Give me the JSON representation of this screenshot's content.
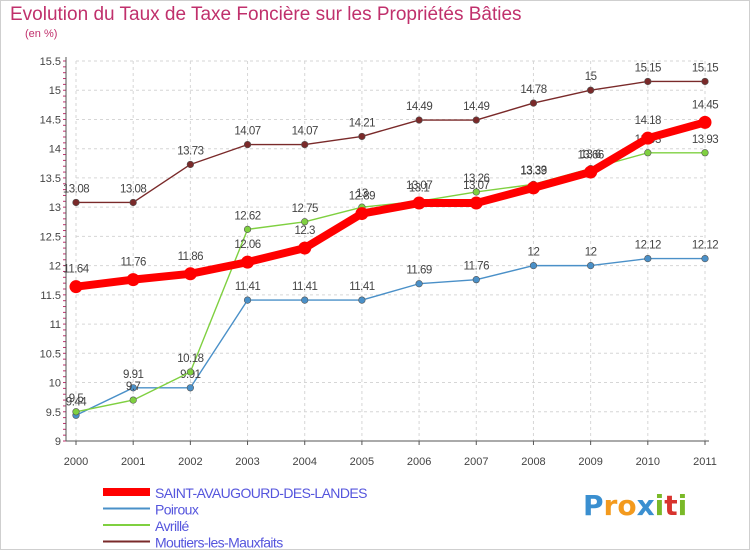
{
  "chart_data": {
    "type": "line",
    "title": "Evolution du Taux de Taxe Foncière sur les Propriétés Bâties",
    "subtitle": "(en %)",
    "x": [
      "2000",
      "2001",
      "2002",
      "2003",
      "2004",
      "2005",
      "2006",
      "2007",
      "2008",
      "2009",
      "2010",
      "2011"
    ],
    "ylim": [
      9,
      15.5
    ],
    "yticks": [
      "9",
      "9.5",
      "10",
      "10.5",
      "11",
      "11.5",
      "12",
      "12.5",
      "13",
      "13.5",
      "14",
      "14.5",
      "15",
      "15.5"
    ],
    "grid": true,
    "series": [
      {
        "name": "SAINT-AVAUGOURD-DES-LANDES",
        "color": "#ff0000",
        "values": [
          11.64,
          11.76,
          11.86,
          12.06,
          12.3,
          12.89,
          13.07,
          13.07,
          13.33,
          13.6,
          14.18,
          14.45
        ],
        "labels": [
          "11.64",
          "11.76",
          "11.86",
          "12.06",
          "12.3",
          "12.89",
          "13.07",
          "13.07",
          "13.33",
          "13.6",
          "14.18",
          "14.45"
        ]
      },
      {
        "name": "Poiroux",
        "color": "#4a90c8",
        "values": [
          9.44,
          9.91,
          9.91,
          11.41,
          11.41,
          11.41,
          11.69,
          11.76,
          12,
          12,
          12.12,
          12.12
        ],
        "labels": [
          "9.44",
          "9.91",
          "9.91",
          "11.41",
          "11.41",
          "11.41",
          "11.69",
          "11.76",
          "12",
          "12",
          "12.12",
          "12.12"
        ]
      },
      {
        "name": "Avrillé",
        "color": "#7fd040",
        "values": [
          9.5,
          9.7,
          10.18,
          12.62,
          12.75,
          13,
          13.1,
          13.26,
          13.39,
          13.66,
          13.93,
          13.93
        ],
        "labels": [
          "9.5",
          "9.7",
          "10.18",
          "12.62",
          "12.75",
          "13",
          "13.1",
          "13.26",
          "13.39",
          "13.66",
          "13.93",
          "13.93"
        ]
      },
      {
        "name": "Moutiers-les-Mauxfaits",
        "color": "#7a2a2a",
        "values": [
          13.08,
          13.08,
          13.73,
          14.07,
          14.07,
          14.21,
          14.49,
          14.49,
          14.78,
          15,
          15.15,
          15.15
        ],
        "labels": [
          "13.08",
          "13.08",
          "13.73",
          "14.07",
          "14.07",
          "14.21",
          "14.49",
          "14.49",
          "14.78",
          "15",
          "15.15",
          "15.15"
        ]
      }
    ],
    "legend_position": "bottom-left"
  },
  "branding": {
    "logo_text": "Proxiti",
    "letters": [
      "P",
      "r",
      "o",
      "x",
      "i",
      "t",
      "i"
    ],
    "colors": [
      "#3a8fd0",
      "#f39a1e",
      "#f39a1e",
      "#3a8fd0",
      "#7ab928",
      "#d8342e",
      "#7ab928"
    ]
  }
}
